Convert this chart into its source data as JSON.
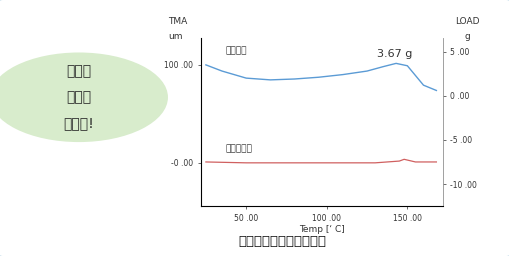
{
  "title": "フィルムの収縮応力測定",
  "left_label_top": "TMA",
  "left_label_bottom": "um",
  "right_label_top": "LOAD",
  "right_label_bottom": "g",
  "xlabel": "Temp [‘ C]",
  "annotation": "3.67 g",
  "label_blue": "収縮応力",
  "label_red": "試料の変位",
  "bubble_line1": "こんな",
  "bubble_line2": "測定が",
  "bubble_line3": "できる!",
  "bubble_bg": "#d8eccc",
  "card_border_color": "#a8cce0",
  "card_bg": "#ffffff",
  "outer_bg": "#ddeef8",
  "blue_line_color": "#5b9bd5",
  "red_line_color": "#d06060",
  "x_blue": [
    25,
    35,
    50,
    65,
    80,
    95,
    110,
    125,
    135,
    143,
    150,
    160,
    168
  ],
  "y_blue": [
    3.5,
    2.8,
    2.0,
    1.8,
    1.9,
    2.1,
    2.4,
    2.8,
    3.3,
    3.67,
    3.4,
    1.2,
    0.6
  ],
  "x_red": [
    25,
    50,
    80,
    100,
    130,
    145,
    148,
    155,
    168
  ],
  "y_red": [
    -7.5,
    -7.6,
    -7.6,
    -7.6,
    -7.6,
    -7.4,
    -7.2,
    -7.5,
    -7.5
  ],
  "xlim": [
    22,
    172
  ],
  "left_ylim": [
    -12.5,
    6.5
  ],
  "right_ylim": [
    -12.5,
    6.5
  ],
  "left_yticks": [
    -0.0,
    -8.0
  ],
  "left_yticklabels": [
    "100 .00",
    "-0 .00"
  ],
  "right_yticks": [
    5.0,
    0.0,
    -5.0,
    -10.0
  ],
  "right_yticklabels": [
    "5 .00",
    "0 .00",
    "-5 .00",
    "-10 .00"
  ],
  "xticks": [
    50,
    100,
    150
  ],
  "xticklabels": [
    "50 .00",
    "100 .00",
    "150 .00"
  ]
}
